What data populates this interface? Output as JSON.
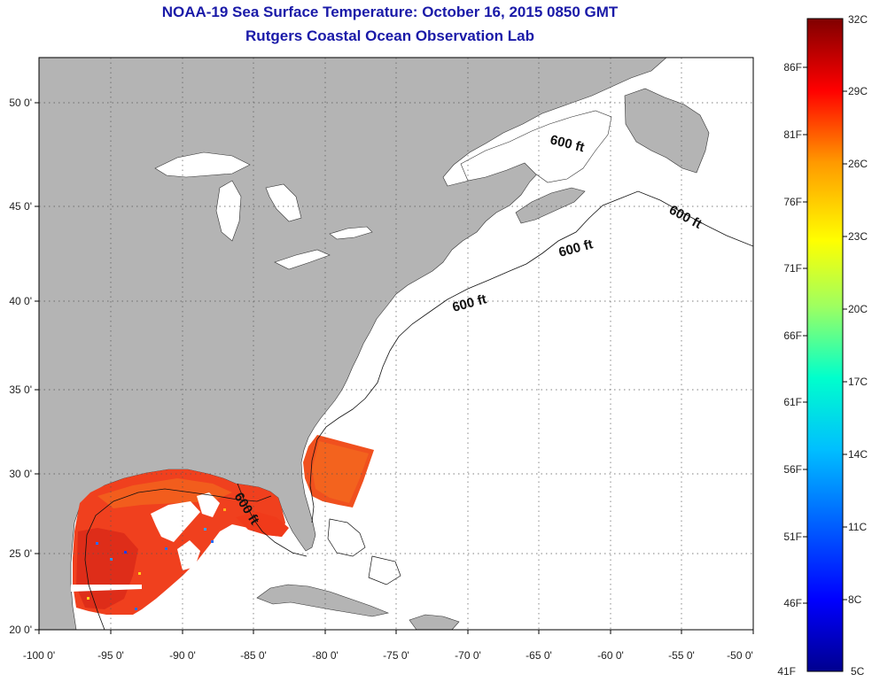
{
  "title": "NOAA-19 Sea Surface Temperature:  October 16, 2015 0850 GMT",
  "subtitle": "Rutgers Coastal Ocean Observation Lab",
  "map": {
    "lon_range": [
      -100,
      -50
    ],
    "lat_range": [
      20,
      52
    ],
    "x_ticks": [
      "-100 0'",
      "-95 0'",
      "-90 0'",
      "-85 0'",
      "-80 0'",
      "-75 0'",
      "-70 0'",
      "-65 0'",
      "-60 0'",
      "-55 0'",
      "-50 0'"
    ],
    "y_ticks": [
      "20 0'",
      "25 0'",
      "30 0'",
      "35 0'",
      "40 0'",
      "45 0'",
      "50 0'"
    ],
    "grid": "dotted",
    "land_color": "#b4b4b4",
    "water_color": "#ffffff",
    "isobath_labels": [
      "600 ft",
      "600 ft",
      "600 ft",
      "600 ft",
      "600 ft"
    ]
  },
  "colorbar": {
    "range_c": [
      5,
      32
    ],
    "celsius_labels": [
      "32C",
      "29C",
      "26C",
      "23C",
      "20C",
      "17C",
      "14C",
      "11C",
      "8C",
      "5C"
    ],
    "fahrenheit_labels": [
      "86F",
      "81F",
      "76F",
      "71F",
      "66F",
      "61F",
      "56F",
      "51F",
      "46F",
      "41F"
    ],
    "colors": [
      "#00008f",
      "#0000ff",
      "#0080ff",
      "#00ffff",
      "#80ff80",
      "#ffff00",
      "#ff8000",
      "#ff0000",
      "#800000"
    ]
  }
}
